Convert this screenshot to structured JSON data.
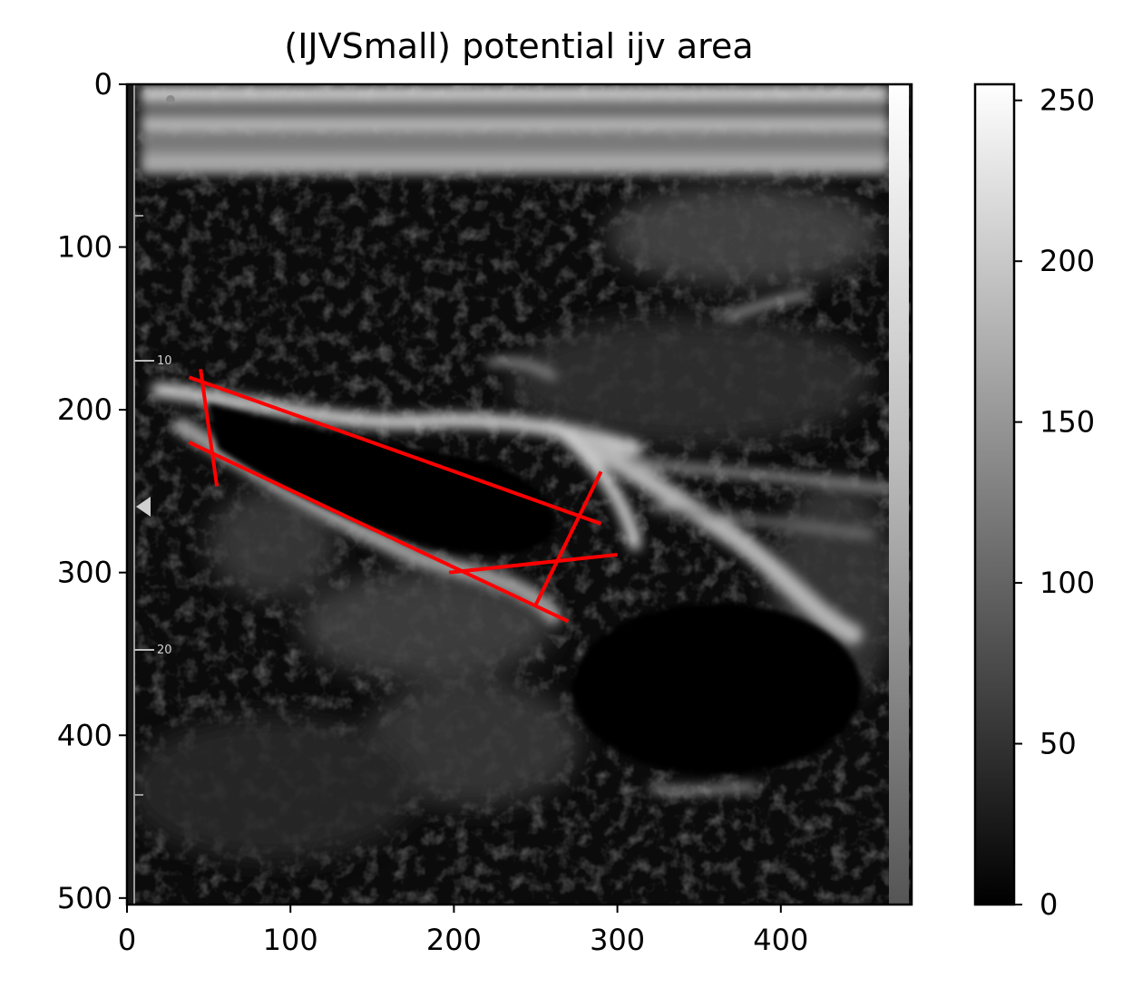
{
  "figure": {
    "title": "(IJVSmall) potential ijv area"
  },
  "image_axes": {
    "xlim": [
      0,
      480
    ],
    "ylim_top_to_bottom": [
      0,
      504
    ],
    "x_ticks": [
      0,
      100,
      200,
      300,
      400
    ],
    "y_ticks": [
      0,
      100,
      200,
      300,
      400,
      500
    ],
    "depth_scale_marks": [
      "10",
      "20"
    ],
    "content": "grayscale ultrasound scan showing the internal jugular vein as a dark elongated region"
  },
  "overlay": {
    "color": "#ff0000",
    "segments": [
      {
        "name": "upper-boundary-line",
        "x1": 38,
        "y1": 180,
        "x2": 290,
        "y2": 270
      },
      {
        "name": "lower-boundary-line",
        "x1": 38,
        "y1": 220,
        "x2": 270,
        "y2": 330
      },
      {
        "name": "left-cross-line",
        "x1": 45,
        "y1": 175,
        "x2": 55,
        "y2": 247
      },
      {
        "name": "right-cross-line",
        "x1": 290,
        "y1": 238,
        "x2": 250,
        "y2": 320
      },
      {
        "name": "bottom-chord-line",
        "x1": 197,
        "y1": 300,
        "x2": 300,
        "y2": 289
      }
    ]
  },
  "colorbar": {
    "range": [
      0,
      255
    ],
    "ticks": [
      0,
      50,
      100,
      150,
      200,
      250
    ],
    "colormap": "gray"
  }
}
